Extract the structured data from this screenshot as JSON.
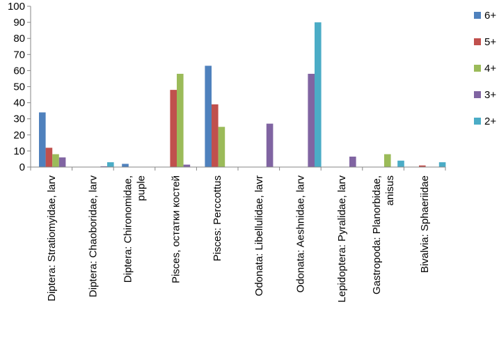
{
  "chart_data": {
    "type": "bar",
    "title": "",
    "xlabel": "",
    "ylabel": "",
    "ylim": [
      0,
      100
    ],
    "yticks": [
      0,
      10,
      20,
      30,
      40,
      50,
      60,
      70,
      80,
      90,
      100
    ],
    "grid": false,
    "legend_position": "right",
    "categories": [
      [
        "Diptera: Stratiomyidae, larv"
      ],
      [
        "Diptera: Chaoboridae, larv"
      ],
      [
        "Diptera: Chironomidae,",
        "puple"
      ],
      [
        "Pisces, остатки костей"
      ],
      [
        "Pisces: Perccottus"
      ],
      [
        "Odonata: Libellulidae, lavr"
      ],
      [
        "Odonata: Aeshnidae, larv"
      ],
      [
        "Lepidoptera: Pyralidae, larv"
      ],
      [
        "Gastropoda: Planorbidae,",
        "anisus"
      ],
      [
        "Bivalvia: Sphaeriidae"
      ]
    ],
    "series": [
      {
        "name": "6+",
        "color": "#4f81bd",
        "values": [
          34,
          0,
          2,
          0,
          63,
          0,
          0,
          0,
          0,
          0
        ]
      },
      {
        "name": "5+",
        "color": "#c0504d",
        "values": [
          12,
          0,
          0,
          48,
          39,
          0,
          0,
          0,
          0,
          1
        ]
      },
      {
        "name": "4+",
        "color": "#9bbb59",
        "values": [
          8,
          0,
          0,
          58,
          25,
          0,
          0,
          0,
          8,
          0
        ]
      },
      {
        "name": "3+",
        "color": "#8064a2",
        "values": [
          6,
          0.5,
          0,
          1.5,
          0,
          27,
          58,
          6.5,
          0,
          0
        ]
      },
      {
        "name": "2+",
        "color": "#4bacc6",
        "values": [
          0,
          3,
          0,
          0,
          0,
          0,
          90,
          0,
          4,
          3
        ]
      }
    ]
  }
}
